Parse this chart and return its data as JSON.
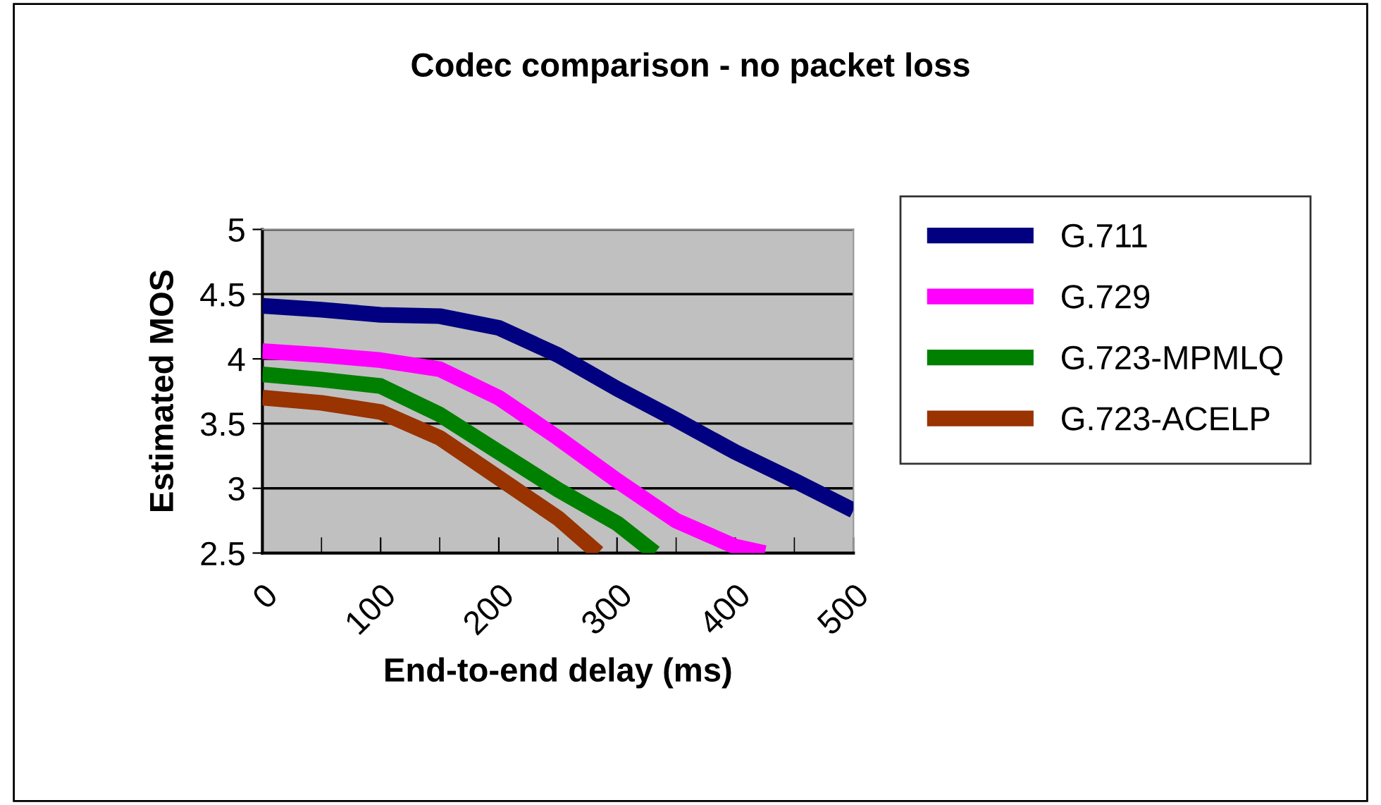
{
  "chart_data": {
    "type": "line",
    "title": "Codec comparison - no packet loss",
    "xlabel": "End-to-end delay (ms)",
    "ylabel": "Estimated MOS",
    "xlim": [
      0,
      500
    ],
    "xticks": [
      0,
      100,
      200,
      300,
      400,
      500
    ],
    "ylim": [
      2.5,
      5
    ],
    "yticks": [
      2.5,
      3,
      3.5,
      4,
      4.5,
      5
    ],
    "grid": "y",
    "legend": "right",
    "marker": "none",
    "line_style": "solid",
    "series": [
      {
        "name": "G.711",
        "color": "#000080",
        "x": [
          0,
          50,
          100,
          150,
          200,
          250,
          300,
          350,
          400,
          450,
          500
        ],
        "values": [
          4.41,
          4.38,
          4.34,
          4.33,
          4.24,
          4.03,
          3.77,
          3.53,
          3.28,
          3.06,
          2.83
        ]
      },
      {
        "name": "G.729",
        "color": "#ff00ff",
        "x": [
          0,
          50,
          100,
          150,
          200,
          250,
          300,
          350,
          400,
          425
        ],
        "values": [
          4.06,
          4.03,
          3.99,
          3.92,
          3.7,
          3.39,
          3.06,
          2.75,
          2.55,
          2.5
        ]
      },
      {
        "name": "G.723-MPMLQ",
        "color": "#008000",
        "x": [
          0,
          50,
          100,
          150,
          200,
          250,
          300,
          332
        ],
        "values": [
          3.88,
          3.84,
          3.79,
          3.57,
          3.28,
          2.99,
          2.73,
          2.5
        ]
      },
      {
        "name": "G.723-ACELP",
        "color": "#993300",
        "x": [
          0,
          50,
          100,
          150,
          200,
          250,
          284
        ],
        "values": [
          3.7,
          3.66,
          3.59,
          3.39,
          3.08,
          2.77,
          2.5
        ]
      }
    ]
  }
}
